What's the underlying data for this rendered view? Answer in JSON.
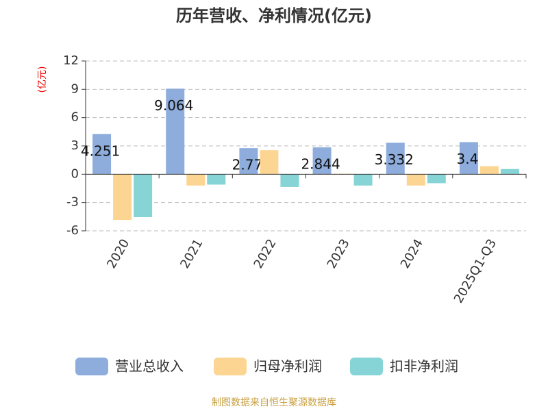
{
  "chart_data": {
    "type": "bar",
    "title": "历年营收、净利情况(亿元)",
    "y_axis_label": "(亿元)",
    "categories": [
      "2020",
      "2021",
      "2022",
      "2023",
      "2024",
      "2025Q1-Q3"
    ],
    "series": [
      {
        "name": "营业总收入",
        "color": "#8eaddc",
        "values": [
          4.251,
          9.064,
          2.77,
          2.844,
          3.332,
          3.4
        ]
      },
      {
        "name": "归母净利润",
        "color": "#fdd592",
        "values": [
          -4.85,
          -1.2,
          2.55,
          0.05,
          -1.2,
          0.85
        ]
      },
      {
        "name": "扣非净利润",
        "color": "#86d4d6",
        "values": [
          -4.55,
          -1.1,
          -1.35,
          -1.2,
          -0.95,
          0.55
        ]
      }
    ],
    "ylim": [
      -6,
      12
    ],
    "yticks": [
      -6,
      -3,
      0,
      3,
      6,
      9,
      12
    ],
    "grid": true,
    "source": "制图数据来自恒生聚源数据库"
  }
}
